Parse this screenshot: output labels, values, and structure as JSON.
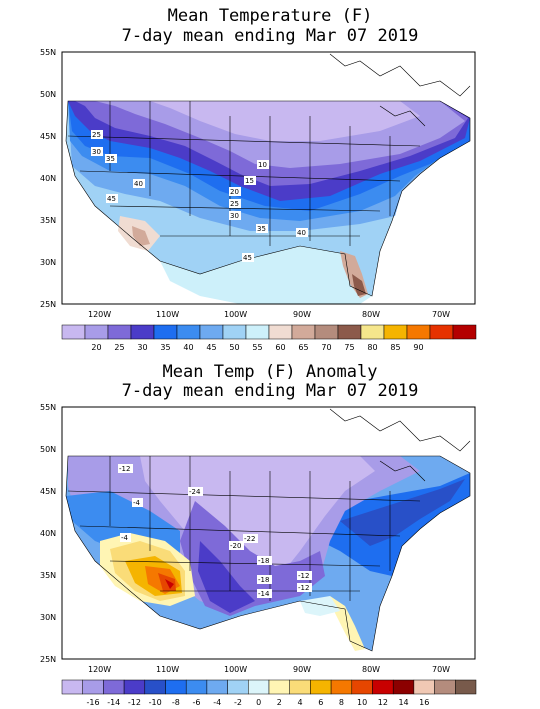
{
  "panels": [
    {
      "title_line1": "Mean Temperature (F)",
      "title_line2": "7-day mean ending Mar 07 2019",
      "lat_ticks": [
        "55N",
        "50N",
        "45N",
        "40N",
        "35N",
        "30N",
        "25N"
      ],
      "lon_ticks": [
        "120W",
        "110W",
        "100W",
        "90W",
        "80W",
        "70W"
      ],
      "contour_labels": [
        "25",
        "30",
        "35",
        "40",
        "45",
        "10",
        "15",
        "20",
        "25",
        "30",
        "35",
        "40",
        "45"
      ],
      "legend": {
        "colors": [
          "#c8b8f0",
          "#a89ce8",
          "#7e6ad8",
          "#4b3cc8",
          "#1e6ef0",
          "#3c8cf0",
          "#6eaaf0",
          "#a0d2f5",
          "#cdf0fa",
          "#f0dcd2",
          "#d2aa9a",
          "#b48c7d",
          "#8c5a4b",
          "#f5e68c",
          "#f5b400",
          "#f57800",
          "#e63200",
          "#b40000"
        ],
        "labels": [
          "20",
          "25",
          "30",
          "35",
          "40",
          "45",
          "50",
          "55",
          "60",
          "65",
          "70",
          "75",
          "80",
          "85",
          "90"
        ]
      }
    },
    {
      "title_line1": "Mean Temp (F) Anomaly",
      "title_line2": "7-day mean ending Mar 07 2019",
      "lat_ticks": [
        "55N",
        "50N",
        "45N",
        "40N",
        "35N",
        "30N",
        "25N"
      ],
      "lon_ticks": [
        "120W",
        "110W",
        "100W",
        "90W",
        "80W",
        "70W"
      ],
      "contour_labels": [
        "-12",
        "-24",
        "-4",
        "-4",
        "-22",
        "-20",
        "-18",
        "-18",
        "-14",
        "-12",
        "-12"
      ],
      "legend": {
        "colors": [
          "#c8b8f0",
          "#a89ce8",
          "#7e6ad8",
          "#4b3cc8",
          "#2850c8",
          "#1e6ef0",
          "#3c8cf0",
          "#6eaaf0",
          "#a0d2f5",
          "#dcf5fa",
          "#fff5b4",
          "#fadc78",
          "#f5b400",
          "#f57800",
          "#e64600",
          "#c80000",
          "#8c0000",
          "#f0c8b4",
          "#b48c7d",
          "#785a4b"
        ],
        "labels": [
          "-16",
          "-14",
          "-12",
          "-10",
          "-8",
          "-6",
          "-4",
          "-2",
          "0",
          "2",
          "4",
          "6",
          "8",
          "10",
          "12",
          "14",
          "16"
        ]
      }
    }
  ]
}
